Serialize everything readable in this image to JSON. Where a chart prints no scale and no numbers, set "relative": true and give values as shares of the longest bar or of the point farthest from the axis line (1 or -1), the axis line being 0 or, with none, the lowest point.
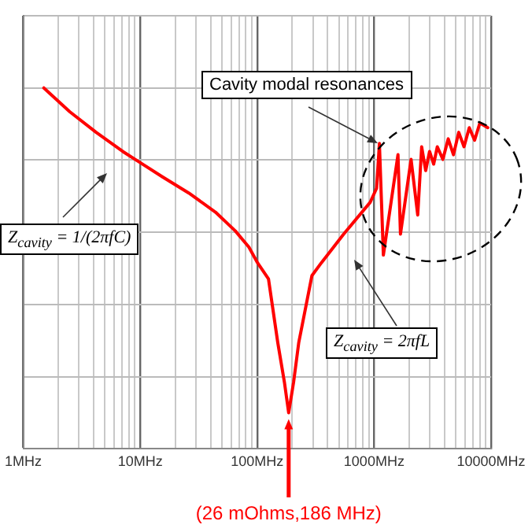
{
  "chart_data": {
    "type": "line",
    "relative": true,
    "log": "x",
    "grid": true,
    "legend": false,
    "marker": "none",
    "line_style": "solid",
    "xlim": [
      1,
      10000
    ],
    "xticks": [
      {
        "value": 1,
        "label": "1MHz"
      },
      {
        "value": 10,
        "label": "10MHz"
      },
      {
        "value": 100,
        "label": "100MHz"
      },
      {
        "value": 1000,
        "label": "1000MHz"
      },
      {
        "value": 10000,
        "label": "10000MHz"
      }
    ],
    "x": [
      1.5,
      2.5,
      4.2,
      7.1,
      10,
      15.6,
      26,
      44,
      65,
      85,
      101,
      125,
      150,
      171,
      186,
      205,
      227,
      294,
      353,
      549,
      925,
      1050,
      1110,
      1200,
      1600,
      1680,
      2070,
      2360,
      2550,
      2760,
      2980,
      3230,
      3470,
      3870,
      4300,
      4770,
      5290,
      5870,
      6510,
      7230,
      8020,
      9370
    ],
    "series": [
      {
        "color": "#ff0000",
        "values": [
          1.0,
          0.934,
          0.877,
          0.824,
          0.793,
          0.753,
          0.709,
          0.656,
          0.604,
          0.559,
          0.515,
          0.471,
          0.295,
          0.185,
          0.1,
          0.185,
          0.295,
          0.48,
          0.515,
          0.595,
          0.683,
          0.722,
          0.846,
          0.537,
          0.815,
          0.595,
          0.802,
          0.648,
          0.837,
          0.771,
          0.824,
          0.789,
          0.837,
          0.802,
          0.859,
          0.815,
          0.877,
          0.837,
          0.89,
          0.855,
          0.903,
          0.89
        ]
      }
    ],
    "annotations": [
      "Cavity modal resonances",
      "Z$_{cavity}$ = 1/(2πfC)",
      "Z$_{cavity}$ = 2πfL",
      "(26 mOhms,186 MHz)"
    ]
  }
}
